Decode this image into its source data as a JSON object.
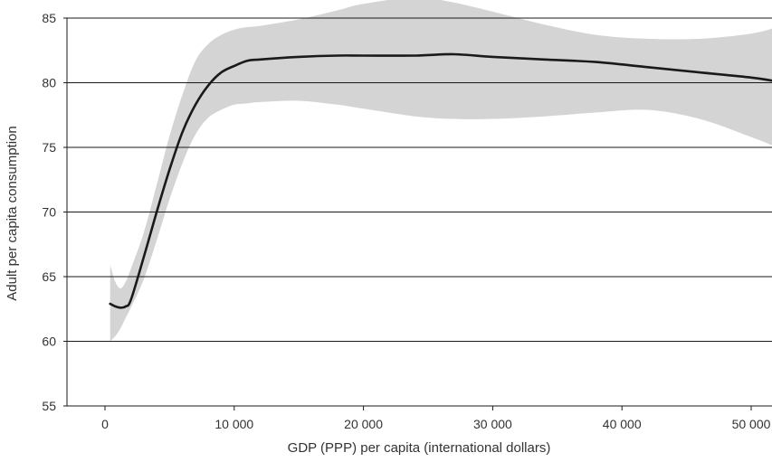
{
  "chart_data": {
    "type": "line",
    "title": "",
    "xlabel": "GDP (PPP) per capita (international dollars)",
    "ylabel": "Adult per capita consumption",
    "xlim": [
      -3000,
      52000
    ],
    "ylim": [
      55,
      85
    ],
    "grid": "horizontal",
    "legend": "none",
    "x_ticks": [
      0,
      10000,
      20000,
      30000,
      40000,
      50000
    ],
    "x_tick_labels": [
      "0",
      "10 000",
      "20 000",
      "30 000",
      "40 000",
      "50 000"
    ],
    "y_ticks": [
      55,
      60,
      65,
      70,
      75,
      80,
      85
    ],
    "y_tick_labels": [
      "55",
      "60",
      "65",
      "70",
      "75",
      "80",
      "85"
    ],
    "series": [
      {
        "x": [
          400,
          800,
          1200,
          1600,
          2000,
          3000,
          4000,
          5000,
          6000,
          7000,
          8000,
          9000,
          10000,
          11000,
          12000,
          15000,
          18000,
          20000,
          24000,
          27000,
          30000,
          34000,
          38000,
          42000,
          46000,
          50000,
          52000
        ],
        "y": [
          62.9,
          62.7,
          62.6,
          62.7,
          63.2,
          66.5,
          70.0,
          73.3,
          76.2,
          78.3,
          79.8,
          80.8,
          81.3,
          81.7,
          81.8,
          82.0,
          82.1,
          82.1,
          82.1,
          82.2,
          82.0,
          81.8,
          81.6,
          81.2,
          80.8,
          80.4,
          80.1
        ],
        "lower": [
          60.0,
          60.4,
          61.0,
          61.8,
          62.6,
          64.8,
          67.8,
          71.0,
          73.8,
          76.0,
          77.3,
          77.9,
          78.3,
          78.4,
          78.5,
          78.6,
          78.3,
          78.0,
          77.4,
          77.2,
          77.2,
          77.4,
          77.7,
          77.9,
          77.2,
          75.8,
          75.0
        ],
        "upper": [
          65.9,
          64.6,
          64.1,
          64.6,
          65.6,
          68.4,
          72.1,
          75.9,
          79.1,
          81.7,
          83.0,
          83.7,
          84.1,
          84.3,
          84.4,
          84.9,
          85.6,
          86.1,
          86.6,
          86.2,
          85.5,
          84.5,
          83.7,
          83.4,
          83.4,
          83.8,
          84.3
        ]
      }
    ],
    "colors": {
      "line": "#1a1a1a",
      "band": "#d4d4d4",
      "grid": "#1a1a1a",
      "text": "#333333"
    }
  }
}
